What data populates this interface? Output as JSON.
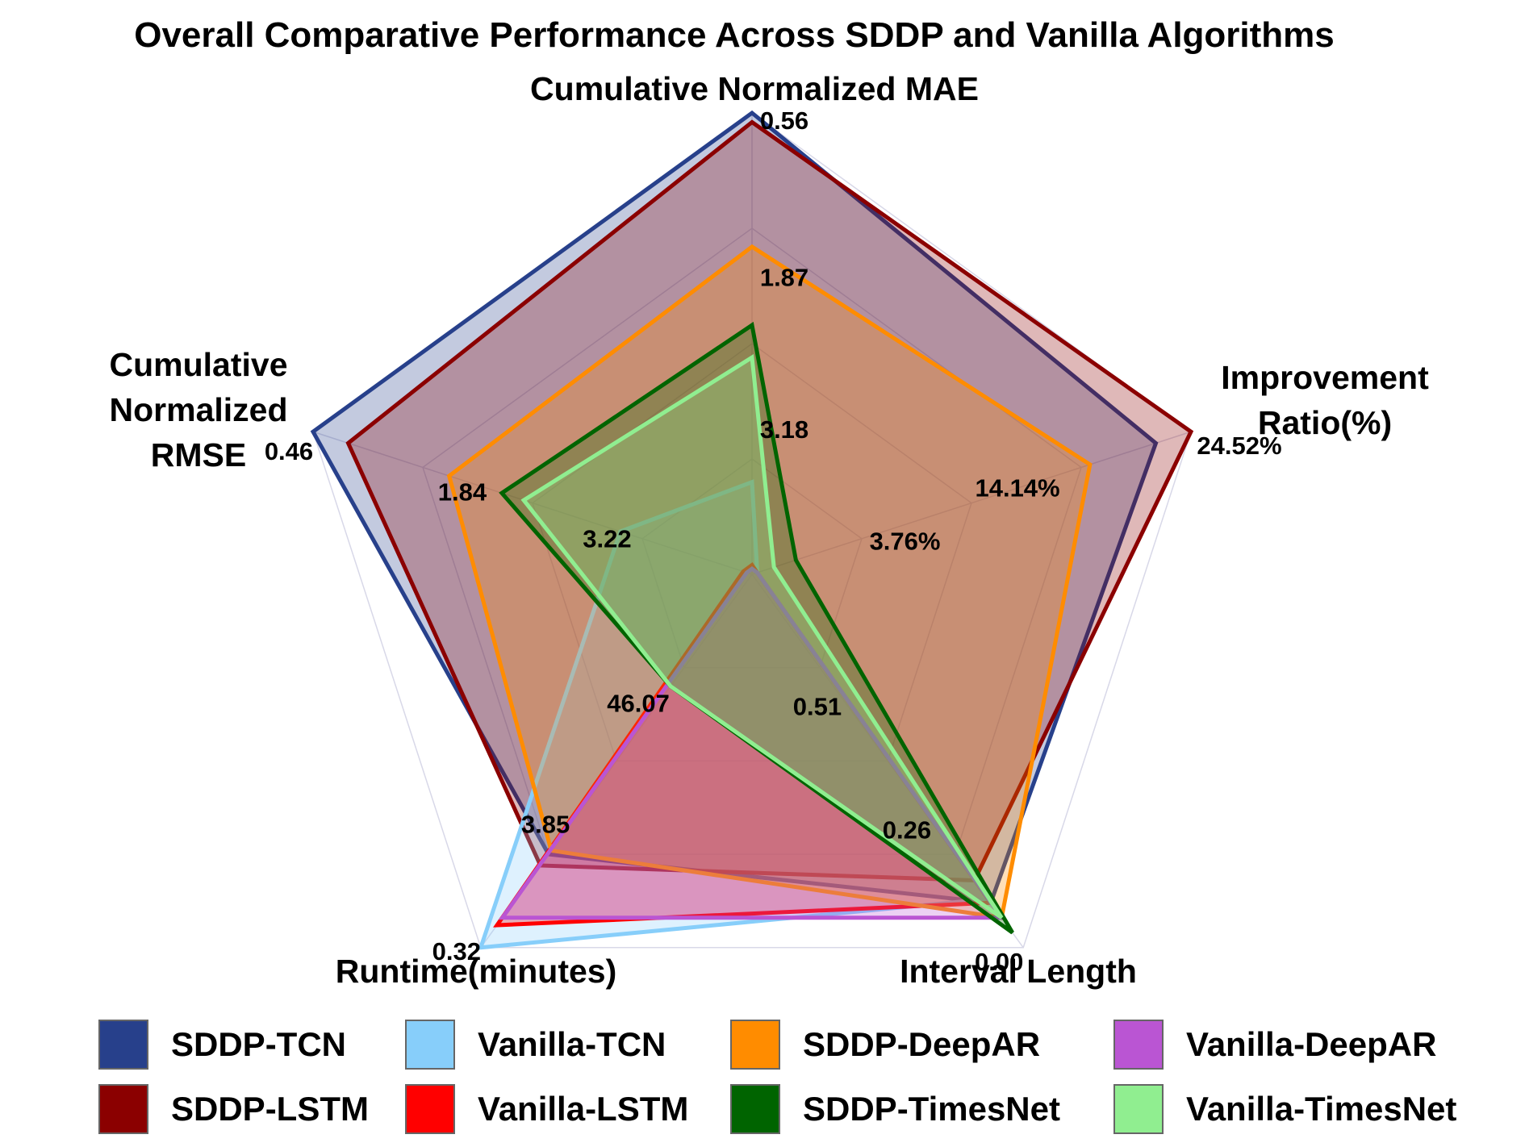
{
  "chart_data": {
    "type": "radar",
    "title": "Overall Comparative Performance Across SDDP and Vanilla Algorithms",
    "axes": [
      {
        "name": "Cumulative Normalized MAE",
        "label_lines": [
          "Cumulative Normalized MAE"
        ],
        "tick_labels": [
          "0.56",
          "1.87",
          "3.18"
        ]
      },
      {
        "name": "Improvement Ratio(%)",
        "label_lines": [
          "Improvement",
          "Ratio(%)"
        ],
        "tick_labels": [
          "24.52%",
          "14.14%",
          "3.76%"
        ]
      },
      {
        "name": "Interval Length",
        "label_lines": [
          "Interval Length"
        ],
        "tick_labels": [
          "0.00",
          "0.26",
          "0.51"
        ]
      },
      {
        "name": "Runtime(minutes)",
        "label_lines": [
          "Runtime(minutes)"
        ],
        "tick_labels": [
          "0.32",
          "3.85",
          "46.07"
        ]
      },
      {
        "name": "Cumulative Normalized RMSE",
        "label_lines": [
          "Cumulative",
          "Normalized",
          "RMSE"
        ],
        "tick_labels": [
          "0.46",
          "1.84",
          "3.22"
        ]
      }
    ],
    "scale_note": "Values are normalized radial scores (0 = center, 1 = outer ring); tick labels show the original metric values.",
    "series": [
      {
        "name": "SDDP-TCN",
        "color": "#27408b",
        "fill_opacity": 0.28,
        "values": [
          1.0,
          0.92,
          0.88,
          0.75,
          1.0
        ]
      },
      {
        "name": "SDDP-LSTM",
        "color": "#8b0000",
        "fill_opacity": 0.28,
        "values": [
          0.98,
          1.0,
          0.82,
          0.78,
          0.92
        ]
      },
      {
        "name": "Vanilla-TCN",
        "color": "#87cefa",
        "fill_opacity": 0.28,
        "values": [
          0.2,
          0.0,
          0.87,
          1.0,
          0.3
        ]
      },
      {
        "name": "Vanilla-LSTM",
        "color": "#ff0000",
        "fill_opacity": 0.28,
        "values": [
          0.02,
          0.0,
          0.88,
          0.94,
          0.02
        ]
      },
      {
        "name": "SDDP-DeepAR",
        "color": "#ff8c00",
        "fill_opacity": 0.28,
        "values": [
          0.71,
          0.77,
          0.92,
          0.74,
          0.69
        ]
      },
      {
        "name": "Vanilla-DeepAR",
        "color": "#ba55d3",
        "fill_opacity": 0.28,
        "values": [
          0.01,
          0.0,
          0.92,
          0.92,
          0.01
        ]
      },
      {
        "name": "SDDP-TimesNet",
        "color": "#006400",
        "fill_opacity": 0.28,
        "values": [
          0.54,
          0.1,
          0.96,
          0.3,
          0.57
        ]
      },
      {
        "name": "Vanilla-TimesNet",
        "color": "#90ee90",
        "fill_opacity": 0.28,
        "values": [
          0.47,
          0.05,
          0.92,
          0.3,
          0.52
        ]
      }
    ],
    "legend": [
      [
        "SDDP-TCN",
        "Vanilla-TCN",
        "SDDP-DeepAR",
        "Vanilla-DeepAR"
      ],
      [
        "SDDP-LSTM",
        "Vanilla-LSTM",
        "SDDP-TimesNet",
        "Vanilla-TimesNet"
      ]
    ],
    "legend_placement": "bottom"
  }
}
